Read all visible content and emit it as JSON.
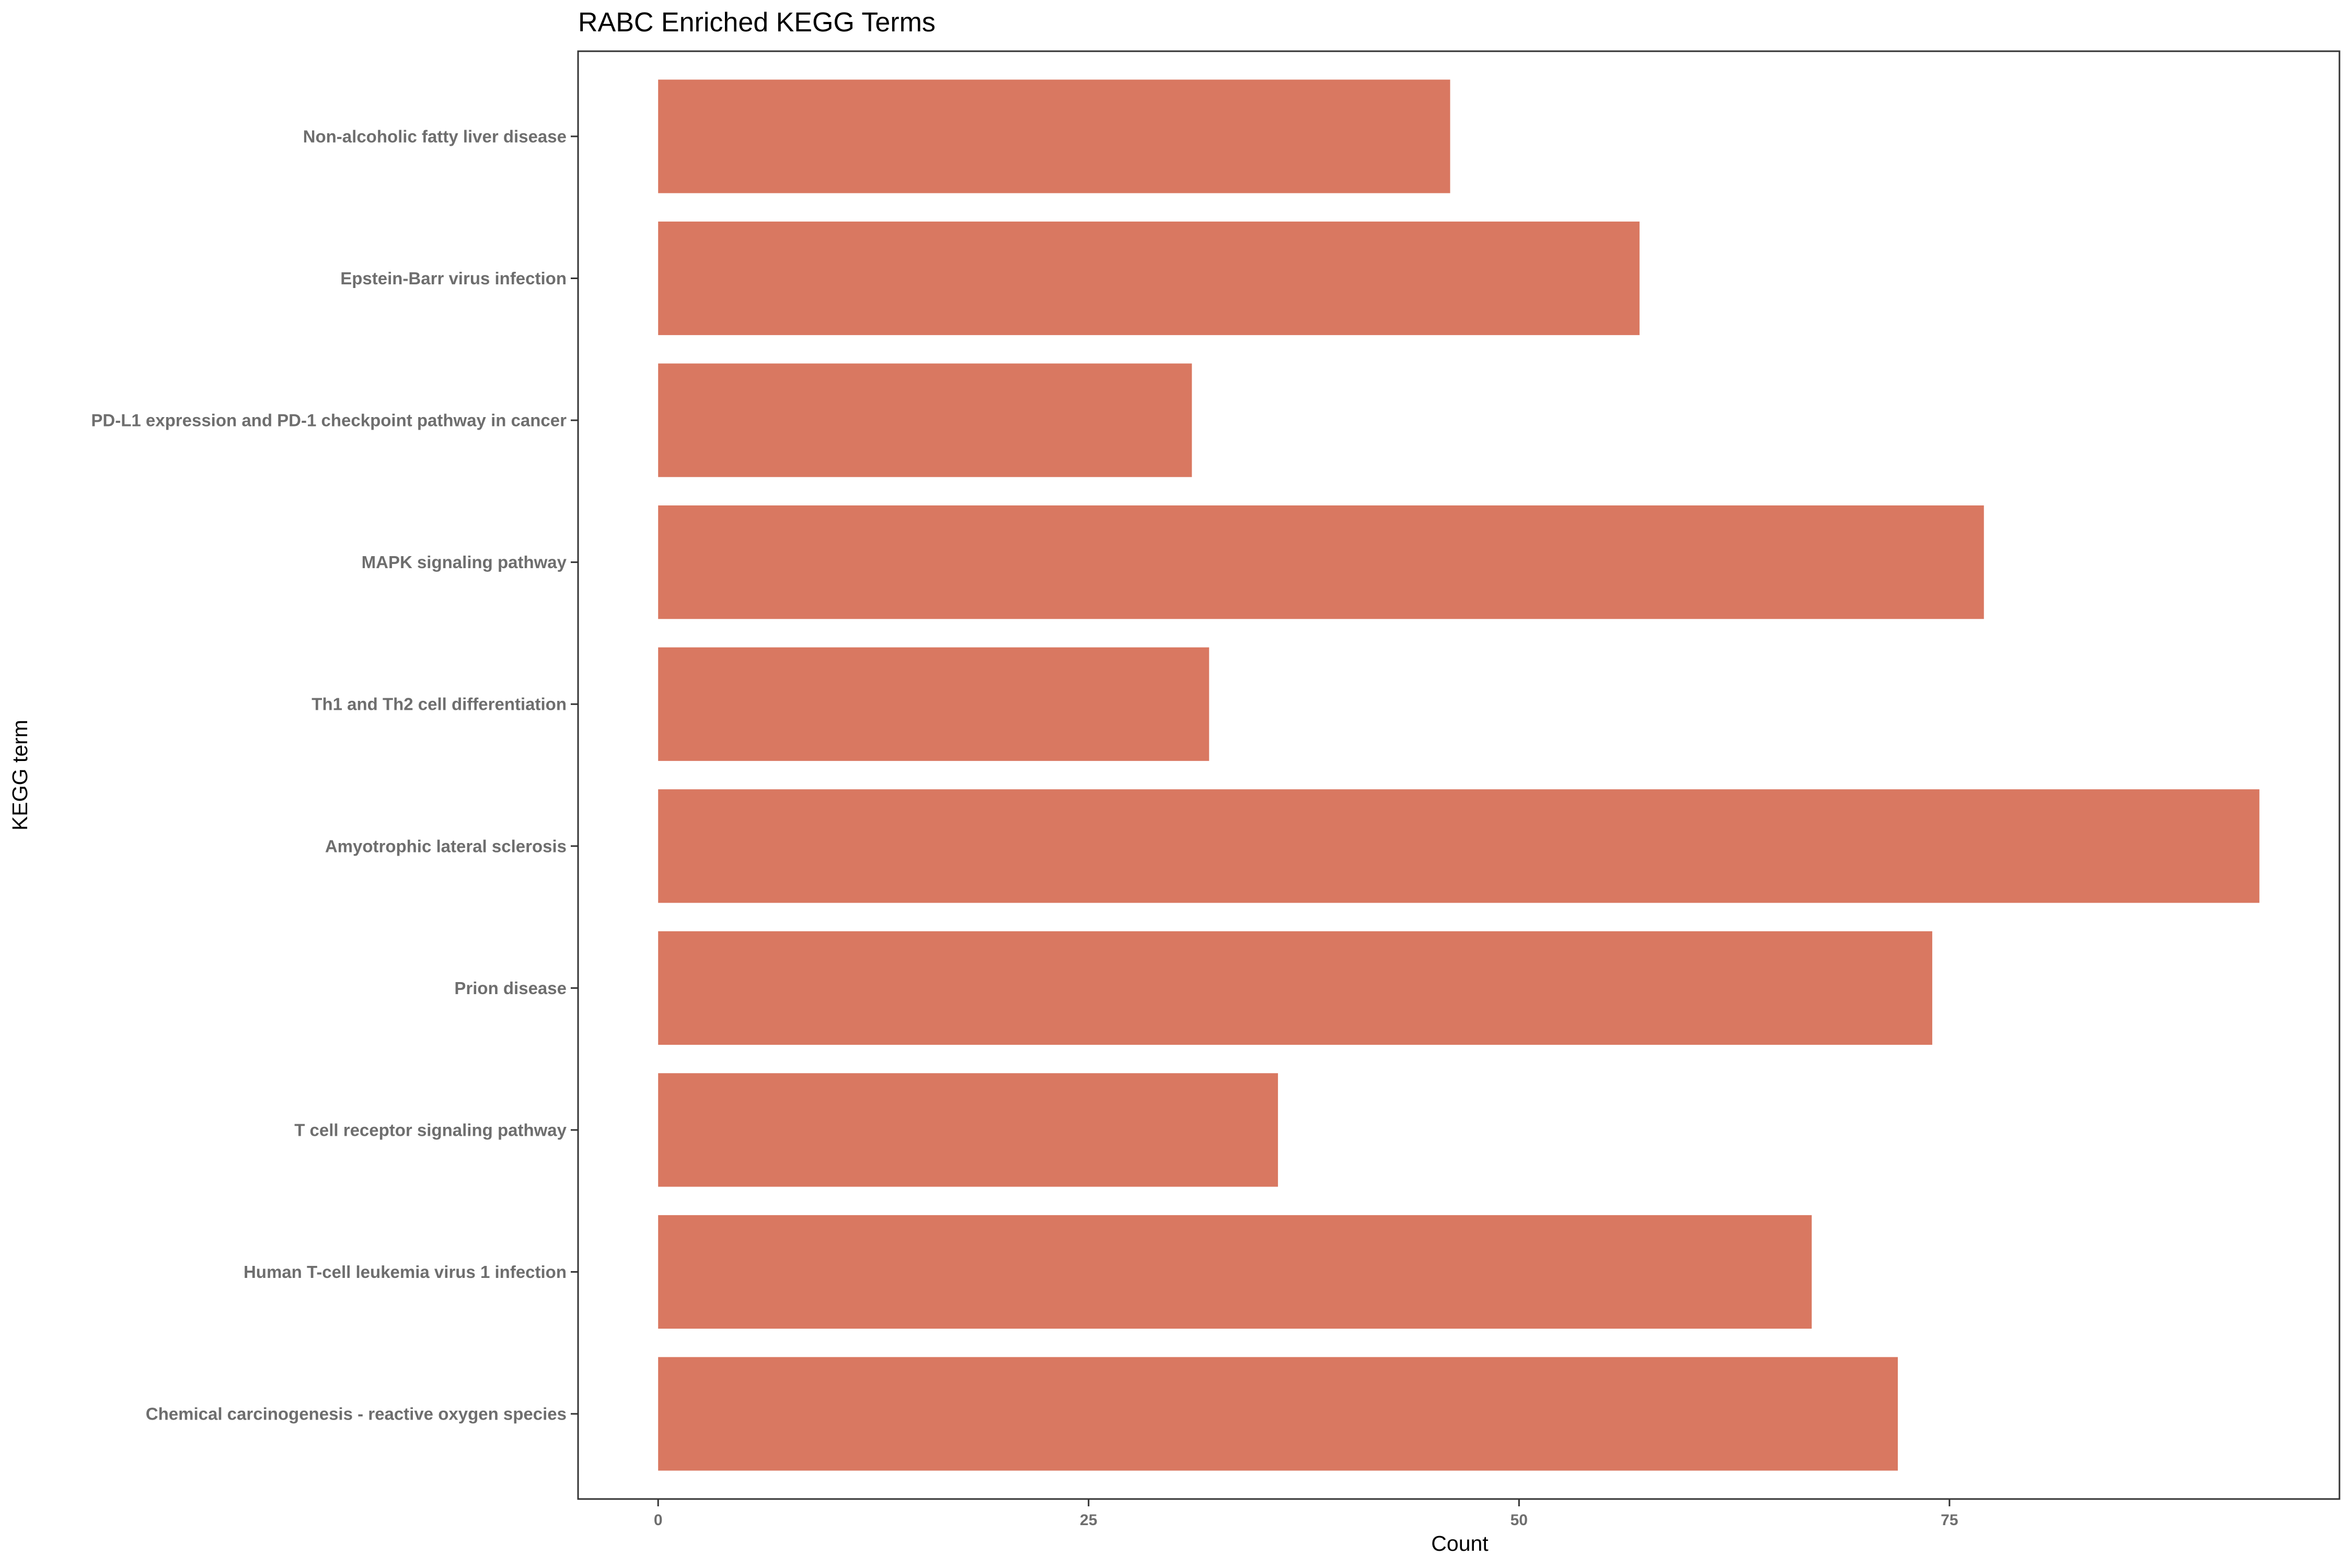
{
  "chart_data": {
    "type": "bar",
    "orientation": "horizontal",
    "title": "RABC Enriched KEGG Terms",
    "xlabel": "Count",
    "ylabel": "KEGG term",
    "categories": [
      "Non-alcoholic fatty liver disease",
      "Epstein-Barr virus infection",
      "PD-L1 expression and PD-1 checkpoint pathway in cancer",
      "MAPK signaling pathway",
      "Th1 and Th2 cell differentiation",
      "Amyotrophic lateral sclerosis",
      "Prion disease",
      "T cell receptor signaling pathway",
      "Human T-cell leukemia virus 1 infection",
      "Chemical carcinogenesis - reactive oxygen species"
    ],
    "values": [
      46,
      57,
      31,
      77,
      32,
      93,
      74,
      36,
      67,
      72
    ],
    "xticks": [
      0,
      25,
      50,
      75
    ],
    "xlim": [
      -4.65,
      97.65
    ],
    "bar_color": "#D97861",
    "grid": false,
    "legend": "none"
  }
}
